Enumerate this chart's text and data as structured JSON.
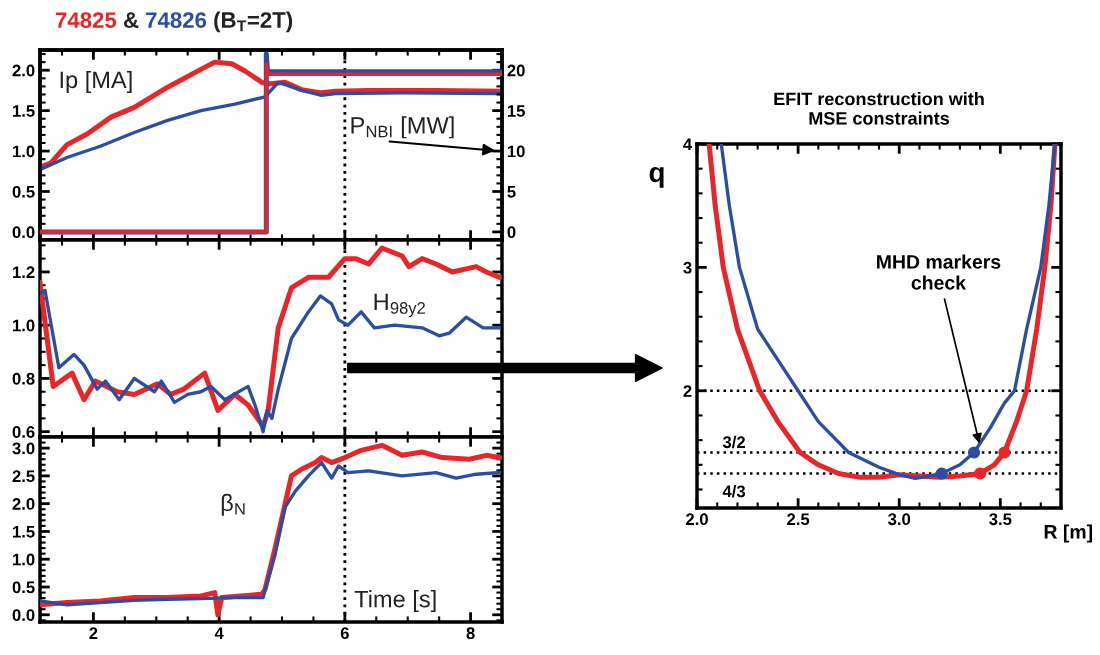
{
  "chart_data": [
    {
      "type": "line",
      "annotations": [
        "Ip [MA]",
        "P$_{NBI}$ [MW]",
        "&",
        "(B$_{T}$=2T)"
      ],
      "xlim": [
        1.15,
        8.5
      ],
      "xticks": [
        2,
        4,
        6,
        8
      ],
      "tick_labels": "y",
      "ylim": [
        -0.1,
        2.25
      ],
      "yticks": [
        {
          "value": 0,
          "label": "0.0"
        },
        {
          "value": 0.5,
          "label": "0.5"
        },
        {
          "value": 1,
          "label": "1.0"
        },
        {
          "value": 1.5,
          "label": "1.5"
        },
        {
          "value": 2,
          "label": "2.0"
        }
      ],
      "y2lim": [
        -1,
        22.5
      ],
      "y2ticks": [
        0,
        5,
        10,
        15,
        20
      ],
      "grid": false,
      "legend": false,
      "line_style": "solid",
      "marker": "none",
      "ref_lines": [
        {
          "axis": "x",
          "value": 6,
          "color": "#000000",
          "line_style": "dotted"
        }
      ],
      "series": [
        {
          "name": "74825",
          "color": "#e8262a",
          "x": [
            1.15,
            1.32,
            1.58,
            1.9,
            2.28,
            2.65,
            3.18,
            3.71,
            3.93,
            4.2,
            4.41,
            4.68,
            4.78,
            5.05,
            5.31,
            5.63,
            5.85,
            6.38,
            7.45,
            8.46
          ],
          "values": [
            0.8,
            0.85,
            1.08,
            1.21,
            1.42,
            1.54,
            1.79,
            2.01,
            2.1,
            2.08,
            1.99,
            1.85,
            1.83,
            1.85,
            1.76,
            1.72,
            1.74,
            1.75,
            1.75,
            1.74
          ]
        },
        {
          "name": "74826",
          "color": "#2b4ea2",
          "x": [
            1.15,
            1.58,
            2.11,
            2.65,
            3.18,
            3.71,
            4.25,
            4.73,
            4.94,
            5.1,
            5.31,
            5.63,
            5.85,
            6.91,
            8.46
          ],
          "values": [
            0.77,
            0.92,
            1.06,
            1.23,
            1.38,
            1.5,
            1.58,
            1.67,
            1.85,
            1.81,
            1.75,
            1.69,
            1.71,
            1.72,
            1.71
          ]
        },
        {
          "axis": "y2",
          "color": "#2b4ea2",
          "x": [
            1.15,
            4.75,
            4.75,
            4.77,
            8.5
          ],
          "values": [
            0,
            0,
            22,
            19.8,
            19.8
          ]
        },
        {
          "axis": "y2",
          "color": "#e8262a",
          "x": [
            1.15,
            4.75,
            4.75,
            4.78,
            8.5
          ],
          "values": [
            0,
            0,
            20.8,
            19.5,
            19.5
          ]
        }
      ]
    },
    {
      "type": "line",
      "annotations": [
        "H$_{98y2}$"
      ],
      "xlim": [
        1.15,
        8.5
      ],
      "xticks": [
        2,
        4,
        6,
        8
      ],
      "tick_labels": "y",
      "ylim": [
        0.58,
        1.32
      ],
      "yticks": [
        0.6,
        0.8,
        {
          "value": 1,
          "label": "1.0"
        },
        1.2
      ],
      "grid": false,
      "legend": false,
      "line_style": "solid",
      "marker": "none",
      "ref_lines": [
        {
          "axis": "x",
          "value": 6,
          "color": "#000000",
          "line_style": "dotted"
        }
      ],
      "series": [
        {
          "color": "#e8262a",
          "x": [
            1.15,
            1.36,
            1.66,
            1.85,
            2.03,
            2.38,
            2.65,
            3.02,
            3.23,
            3.44,
            3.77,
            3.98,
            4.25,
            4.46,
            4.7,
            4.78,
            4.94,
            5.15,
            5.42,
            5.74,
            6.0,
            6.17,
            6.38,
            6.59,
            6.91,
            7.02,
            7.23,
            7.45,
            7.71,
            8.09,
            8.25,
            8.46
          ],
          "values": [
            1.16,
            0.77,
            0.82,
            0.72,
            0.79,
            0.75,
            0.74,
            0.78,
            0.74,
            0.76,
            0.82,
            0.68,
            0.74,
            0.7,
            0.62,
            0.68,
            0.99,
            1.14,
            1.18,
            1.18,
            1.25,
            1.25,
            1.23,
            1.29,
            1.26,
            1.22,
            1.25,
            1.23,
            1.2,
            1.22,
            1.2,
            1.18
          ]
        },
        {
          "color": "#2b4ea2",
          "x": [
            1.15,
            1.23,
            1.45,
            1.69,
            1.85,
            2.06,
            2.19,
            2.41,
            2.65,
            2.97,
            3.08,
            3.29,
            3.5,
            3.71,
            3.87,
            4.09,
            4.46,
            4.57,
            4.7,
            4.76,
            4.84,
            4.94,
            5.15,
            5.42,
            5.61,
            5.79,
            5.9,
            6.05,
            6.26,
            6.47,
            6.79,
            7.23,
            7.5,
            7.66,
            7.93,
            8.2,
            8.46
          ],
          "values": [
            1.12,
            1.13,
            0.84,
            0.89,
            0.85,
            0.76,
            0.79,
            0.72,
            0.8,
            0.75,
            0.79,
            0.71,
            0.74,
            0.75,
            0.77,
            0.72,
            0.77,
            0.7,
            0.6,
            0.68,
            0.65,
            0.76,
            0.95,
            1.05,
            1.11,
            1.08,
            1.02,
            1.0,
            1.05,
            0.99,
            1.0,
            0.99,
            0.96,
            0.97,
            1.03,
            0.99,
            0.99
          ]
        }
      ]
    },
    {
      "type": "line",
      "annotations": [
        "β$_{N}$",
        "Time [s]"
      ],
      "xlim": [
        1.15,
        8.5
      ],
      "xticks": [
        2,
        4,
        6,
        8
      ],
      "ylim": [
        -0.13,
        3.2
      ],
      "yticks": [
        {
          "value": 0,
          "label": "0.0"
        },
        {
          "value": 0.5,
          "label": "0.5"
        },
        {
          "value": 1,
          "label": "1.0"
        },
        {
          "value": 1.5,
          "label": "1.5"
        },
        {
          "value": 2,
          "label": "2.0"
        },
        {
          "value": 2.5,
          "label": "2.5"
        },
        {
          "value": 3,
          "label": "3.0"
        }
      ],
      "grid": false,
      "legend": false,
      "line_style": "solid",
      "marker": "none",
      "ref_lines": [
        {
          "axis": "x",
          "value": 6,
          "color": "#000000",
          "line_style": "dotted"
        }
      ],
      "series": [
        {
          "color": "#e8262a",
          "x": [
            1.15,
            1.58,
            2.11,
            2.65,
            3.18,
            3.71,
            3.93,
            3.98,
            4.04,
            4.68,
            4.73,
            4.89,
            5.05,
            5.15,
            5.31,
            5.53,
            5.63,
            5.79,
            6.0,
            6.26,
            6.59,
            6.91,
            7.23,
            7.55,
            7.98,
            8.25,
            8.46
          ],
          "values": [
            0.18,
            0.22,
            0.25,
            0.31,
            0.31,
            0.34,
            0.4,
            0.0,
            0.31,
            0.37,
            0.46,
            1.2,
            2.0,
            2.5,
            2.62,
            2.74,
            2.83,
            2.74,
            2.83,
            2.96,
            3.05,
            2.87,
            2.93,
            2.83,
            2.8,
            2.87,
            2.83
          ]
        },
        {
          "color": "#2b4ea2",
          "x": [
            1.15,
            1.58,
            2.11,
            2.65,
            3.18,
            3.71,
            4.25,
            4.7,
            4.89,
            5.05,
            5.21,
            5.42,
            5.63,
            5.79,
            5.9,
            6.05,
            6.38,
            6.91,
            7.45,
            7.77,
            8.09,
            8.46
          ],
          "values": [
            0.25,
            0.18,
            0.22,
            0.26,
            0.28,
            0.29,
            0.31,
            0.31,
            1.08,
            1.94,
            2.22,
            2.5,
            2.74,
            2.46,
            2.68,
            2.56,
            2.59,
            2.5,
            2.56,
            2.46,
            2.53,
            2.56
          ]
        }
      ]
    },
    {
      "type": "line",
      "title": "EFIT reconstruction with\nMSE constraints",
      "xlabel": "R [m]",
      "ylabel": "q",
      "annotations": [
        {
          "text": "MHD markers\ncheck",
          "x": 3.4,
          "y": 1.55
        },
        "3/2",
        "4/3"
      ],
      "xlim": [
        2.0,
        3.8
      ],
      "xticks": [
        {
          "value": 2,
          "label": "2.0"
        },
        {
          "value": 2.5,
          "label": "2.5"
        },
        {
          "value": 3,
          "label": "3.0"
        },
        {
          "value": 3.5,
          "label": "3.5"
        }
      ],
      "ylim": [
        1.05,
        4
      ],
      "yticks": [
        2,
        3,
        4
      ],
      "grid": false,
      "legend": false,
      "line_style": "solid",
      "ref_lines": [
        {
          "axis": "y",
          "value": 2,
          "color": "#000000",
          "line_style": "dotted"
        },
        {
          "axis": "y",
          "value": 1.5,
          "color": "#000000",
          "line_style": "dotted"
        },
        {
          "axis": "y",
          "value": 1.33,
          "color": "#000000",
          "line_style": "dotted"
        }
      ],
      "series": [
        {
          "color": "#e8262a",
          "x": [
            2.06,
            2.09,
            2.13,
            2.2,
            2.31,
            2.4,
            2.51,
            2.6,
            2.7,
            2.8,
            2.9,
            3.0,
            3.1,
            3.2,
            3.3,
            3.4,
            3.47,
            3.52,
            3.58,
            3.63,
            3.68,
            3.72,
            3.75,
            3.77
          ],
          "values": [
            4.0,
            3.5,
            3.0,
            2.5,
            2.0,
            1.75,
            1.5,
            1.4,
            1.33,
            1.3,
            1.3,
            1.32,
            1.31,
            1.3,
            1.31,
            1.33,
            1.4,
            1.5,
            1.75,
            2.0,
            2.5,
            3.0,
            3.5,
            4.0
          ]
        },
        {
          "color": "#2b4ea2",
          "x": [
            2.12,
            2.16,
            2.21,
            2.3,
            2.5,
            2.6,
            2.75,
            2.9,
            3.0,
            3.08,
            3.15,
            3.21,
            3.3,
            3.37,
            3.45,
            3.52,
            3.57,
            3.63,
            3.7,
            3.74,
            3.77
          ],
          "values": [
            4.0,
            3.5,
            3.0,
            2.5,
            2.0,
            1.75,
            1.5,
            1.38,
            1.32,
            1.29,
            1.31,
            1.33,
            1.4,
            1.5,
            1.7,
            1.9,
            2.0,
            2.5,
            3.0,
            3.5,
            4.0
          ]
        },
        {
          "type": "scatter",
          "marker": "circle",
          "color": "#2b4ea2",
          "x": [
            3.21,
            3.37
          ],
          "values": [
            1.33,
            1.5
          ]
        },
        {
          "type": "scatter",
          "marker": "circle",
          "color": "#e8262a",
          "x": [
            3.4,
            3.52
          ],
          "values": [
            1.33,
            1.5
          ]
        }
      ]
    }
  ]
}
